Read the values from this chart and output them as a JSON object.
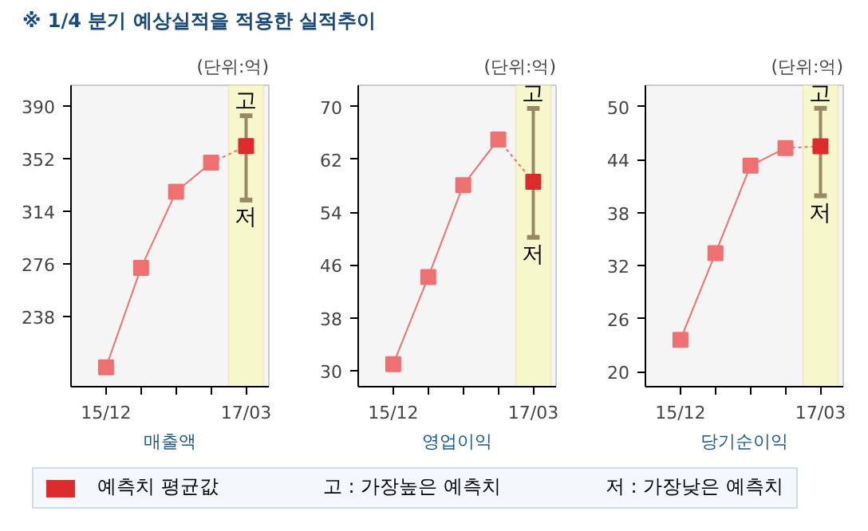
{
  "chart_data": [
    {
      "type": "line",
      "title": "※ 1/4 분기 예상실적을 적용한 실적추이",
      "subtitle": "(단위:억)",
      "xlabel": "매출액",
      "legend": "bottom",
      "grid": false,
      "categories": [
        "15/12",
        null,
        null,
        null,
        "17/03"
      ],
      "ylim": [
        187,
        405
      ],
      "yticks": [
        238,
        276,
        314,
        352,
        390
      ],
      "bands": [
        {
          "axis": "x",
          "from": "17/03",
          "to": "17/03",
          "color": "#f7f7cc"
        }
      ],
      "series": [
        {
          "color": "#ee7070",
          "values": [
            201,
            273,
            328,
            349,
            null
          ],
          "marker": "square",
          "line_style": "solid"
        },
        {
          "color": "#ee7070",
          "values": [
            null,
            null,
            null,
            349,
            361
          ],
          "line_style": "dotted"
        },
        {
          "type": "scatter",
          "name": "예측치 평균값",
          "color": "#dd2a2a",
          "values": [
            null,
            null,
            null,
            null,
            361
          ],
          "errors": [
            null,
            null,
            null,
            null,
            [
              322,
              383
            ]
          ],
          "marker": "square"
        }
      ],
      "annotations": [
        {
          "text": "고",
          "x": "17/03",
          "y": 383
        },
        {
          "text": "저",
          "x": "17/03",
          "y": 322
        },
        "고 : 가장높은 예측치",
        "저 : 가장낮은 예측치"
      ]
    },
    {
      "type": "line",
      "subtitle": "(단위:억)",
      "xlabel": "영업이익",
      "grid": false,
      "categories": [
        "15/12",
        null,
        null,
        null,
        "17/03"
      ],
      "ylim": [
        27.6,
        73.2
      ],
      "yticks": [
        30,
        38,
        46,
        54,
        62,
        70
      ],
      "bands": [
        {
          "axis": "x",
          "from": "17/03",
          "to": "17/03",
          "color": "#f7f7cc"
        }
      ],
      "series": [
        {
          "color": "#ee7070",
          "values": [
            31,
            44.2,
            58.1,
            65,
            null
          ],
          "marker": "square",
          "line_style": "solid"
        },
        {
          "color": "#ee7070",
          "values": [
            null,
            null,
            null,
            65,
            58.6
          ],
          "line_style": "dotted"
        },
        {
          "type": "scatter",
          "color": "#dd2a2a",
          "values": [
            null,
            null,
            null,
            null,
            58.6
          ],
          "errors": [
            null,
            null,
            null,
            null,
            [
              50.2,
              69.7
            ]
          ],
          "marker": "square"
        }
      ],
      "annotations": [
        {
          "text": "고",
          "x": "17/03",
          "y": 69.7
        },
        {
          "text": "저",
          "x": "17/03",
          "y": 50.2
        }
      ]
    },
    {
      "type": "line",
      "subtitle": "(단위:억)",
      "xlabel": "당기순이익",
      "grid": false,
      "categories": [
        "15/12",
        null,
        null,
        null,
        "17/03"
      ],
      "ylim": [
        18.3,
        52.4
      ],
      "yticks": [
        20,
        26,
        32,
        38,
        44,
        50
      ],
      "bands": [
        {
          "axis": "x",
          "from": "17/03",
          "to": "17/03",
          "color": "#f7f7cc"
        }
      ],
      "series": [
        {
          "color": "#ee7070",
          "values": [
            23.6,
            33.4,
            43.3,
            45.3,
            null
          ],
          "marker": "square",
          "line_style": "solid"
        },
        {
          "color": "#ee7070",
          "values": [
            null,
            null,
            null,
            45.3,
            45.5
          ],
          "line_style": "dotted"
        },
        {
          "type": "scatter",
          "color": "#dd2a2a",
          "values": [
            null,
            null,
            null,
            null,
            45.5
          ],
          "errors": [
            null,
            null,
            null,
            null,
            [
              39.9,
              49.8
            ]
          ],
          "marker": "square"
        }
      ],
      "annotations": [
        {
          "text": "고",
          "x": "17/03",
          "y": 49.8
        },
        {
          "text": "저",
          "x": "17/03",
          "y": 39.9
        }
      ]
    }
  ]
}
